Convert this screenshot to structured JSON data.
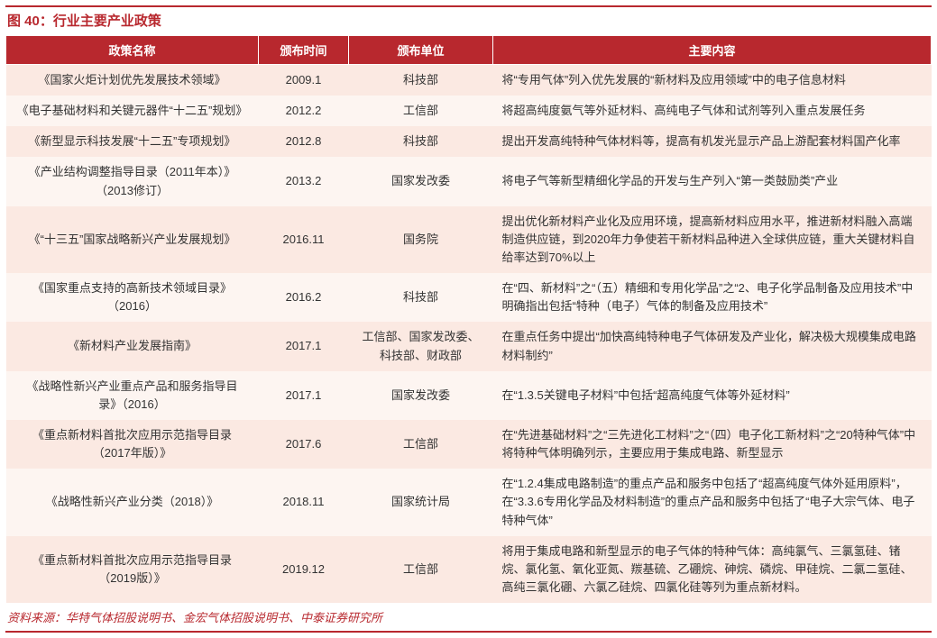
{
  "figure_label": "图 40：行业主要产业政策",
  "source_label": "资料来源：华特气体招股说明书、金宏气体招股说明书、中泰证券研究所",
  "colors": {
    "accent": "#b8282e",
    "row_even": "#fbe9e2",
    "row_odd": "#fdf5f1",
    "text": "#333333",
    "header_text": "#ffffff"
  },
  "table": {
    "headers": {
      "name": "政策名称",
      "time": "颁布时间",
      "unit": "颁布单位",
      "content": "主要内容"
    },
    "rows": [
      {
        "name": "《国家火炬计划优先发展技术领域》",
        "time": "2009.1",
        "unit": "科技部",
        "content": "将“专用气体”列入优先发展的“新材料及应用领域”中的电子信息材料"
      },
      {
        "name": "《电子基础材料和关键元器件“十二五”规划》",
        "time": "2012.2",
        "unit": "工信部",
        "content": "将超高纯度氨气等外延材料、高纯电子气体和试剂等列入重点发展任务"
      },
      {
        "name": "《新型显示科技发展“十二五”专项规划》",
        "time": "2012.8",
        "unit": "科技部",
        "content": "提出开发高纯特种气体材料等，提高有机发光显示产品上游配套材料国产化率"
      },
      {
        "name": "《产业结构调整指导目录（2011年本）》（2013修订）",
        "time": "2013.2",
        "unit": "国家发改委",
        "content": "将电子气等新型精细化学品的开发与生产列入“第一类鼓励类”产业"
      },
      {
        "name": "《“十三五”国家战略新兴产业发展规划》",
        "time": "2016.11",
        "unit": "国务院",
        "content": "提出优化新材料产业化及应用环境，提高新材料应用水平，推进新材料融入高端制造供应链，到2020年力争使若干新材料品种进入全球供应链，重大关键材料自给率达到70%以上"
      },
      {
        "name": "《国家重点支持的高新技术领域目录》（2016）",
        "time": "2016.2",
        "unit": "科技部",
        "content": "在“四、新材料”之“（五）精细和专用化学品”之“2、电子化学品制备及应用技术”中明确指出包括“特种（电子）气体的制备及应用技术”"
      },
      {
        "name": "《新材料产业发展指南》",
        "time": "2017.1",
        "unit": "工信部、国家发改委、科技部、财政部",
        "content": "在重点任务中提出“加快高纯特种电子气体研发及产业化，解决极大规模集成电路材料制约”"
      },
      {
        "name": "《战略性新兴产业重点产品和服务指导目录》（2016）",
        "time": "2017.1",
        "unit": "国家发改委",
        "content": "在“1.3.5关键电子材料”中包括“超高纯度气体等外延材料”"
      },
      {
        "name": "《重点新材料首批次应用示范指导目录（2017年版）》",
        "time": "2017.6",
        "unit": "工信部",
        "content": "在“先进基础材料”之“三先进化工材料”之“（四）电子化工新材料”之“20特种气体”中将特种气体明确列示，主要应用于集成电路、新型显示"
      },
      {
        "name": "《战略性新兴产业分类（2018）》",
        "time": "2018.11",
        "unit": "国家统计局",
        "content": "在“1.2.4集成电路制造”的重点产品和服务中包括了“超高纯度气体外延用原料”，在“3.3.6专用化学品及材料制造”的重点产品和服务中包括了“电子大宗气体、电子特种气体”"
      },
      {
        "name": "《重点新材料首批次应用示范指导目录（2019版）》",
        "time": "2019.12",
        "unit": "工信部",
        "content": "将用于集成电路和新型显示的电子气体的特种气体：高纯氯气、三氯氢硅、锗烷、氯化氢、氧化亚氮、羰基硫、乙硼烷、砷烷、磷烷、甲硅烷、二氯二氢硅、高纯三氯化硼、六氯乙硅烷、四氯化硅等列为重点新材料。"
      }
    ]
  }
}
